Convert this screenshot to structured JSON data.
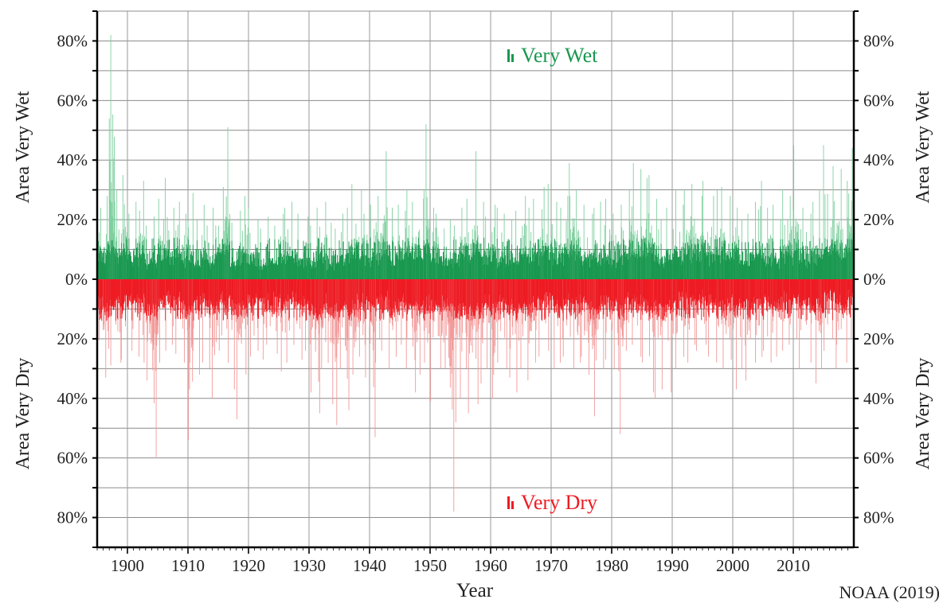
{
  "chart_data": {
    "type": "bar",
    "xlabel": "Year",
    "source_note": "NOAA (2019)",
    "xlim": [
      1895,
      2019
    ],
    "x_ticks": [
      "1900",
      "1910",
      "1920",
      "1930",
      "1940",
      "1950",
      "1960",
      "1970",
      "1980",
      "1990",
      "2000",
      "2010"
    ],
    "y_ticks_upper": [
      "80%",
      "60%",
      "40%",
      "20%",
      "0%"
    ],
    "y_ticks_lower": [
      "20%",
      "40%",
      "60%",
      "80%"
    ],
    "y_label_upper": "Area Very Wet",
    "y_label_lower": "Area Very Dry",
    "ylim": [
      -90,
      90
    ],
    "grid": true,
    "legend_placement": "top-center / bottom-center",
    "resolution": "monthly",
    "colors": {
      "wet": "#1a9850",
      "wet_light": "#7fcf9f",
      "dry": "#ee1c24",
      "dry_light": "#f29a9a"
    },
    "series": [
      {
        "name": "Very Wet",
        "color": "#1a9850",
        "yearly_max_percent": [
          [
            1895,
            24
          ],
          [
            1896,
            28
          ],
          [
            1897,
            82
          ],
          [
            1898,
            30
          ],
          [
            1899,
            35
          ],
          [
            1900,
            22
          ],
          [
            1901,
            26
          ],
          [
            1902,
            33
          ],
          [
            1903,
            18
          ],
          [
            1904,
            21
          ],
          [
            1905,
            27
          ],
          [
            1906,
            34
          ],
          [
            1907,
            24
          ],
          [
            1908,
            26
          ],
          [
            1909,
            22
          ],
          [
            1910,
            29
          ],
          [
            1911,
            20
          ],
          [
            1912,
            25
          ],
          [
            1913,
            18
          ],
          [
            1914,
            24
          ],
          [
            1915,
            31
          ],
          [
            1916,
            51
          ],
          [
            1917,
            19
          ],
          [
            1918,
            23
          ],
          [
            1919,
            28
          ],
          [
            1920,
            24
          ],
          [
            1921,
            20
          ],
          [
            1922,
            17
          ],
          [
            1923,
            21
          ],
          [
            1924,
            18
          ],
          [
            1925,
            22
          ],
          [
            1926,
            24
          ],
          [
            1927,
            26
          ],
          [
            1928,
            22
          ],
          [
            1929,
            21
          ],
          [
            1930,
            18
          ],
          [
            1931,
            24
          ],
          [
            1932,
            26
          ],
          [
            1933,
            19
          ],
          [
            1934,
            17
          ],
          [
            1935,
            22
          ],
          [
            1936,
            24
          ],
          [
            1937,
            32
          ],
          [
            1938,
            30
          ],
          [
            1939,
            22
          ],
          [
            1940,
            25
          ],
          [
            1941,
            28
          ],
          [
            1942,
            43
          ],
          [
            1943,
            24
          ],
          [
            1944,
            25
          ],
          [
            1945,
            23
          ],
          [
            1946,
            30
          ],
          [
            1947,
            26
          ],
          [
            1948,
            27
          ],
          [
            1949,
            52
          ],
          [
            1950,
            24
          ],
          [
            1951,
            22
          ],
          [
            1952,
            17
          ],
          [
            1953,
            20
          ],
          [
            1954,
            18
          ],
          [
            1955,
            24
          ],
          [
            1956,
            27
          ],
          [
            1957,
            43
          ],
          [
            1958,
            26
          ],
          [
            1959,
            21
          ],
          [
            1960,
            25
          ],
          [
            1961,
            24
          ],
          [
            1962,
            22
          ],
          [
            1963,
            20
          ],
          [
            1964,
            23
          ],
          [
            1965,
            28
          ],
          [
            1966,
            24
          ],
          [
            1967,
            27
          ],
          [
            1968,
            31
          ],
          [
            1969,
            32
          ],
          [
            1970,
            26
          ],
          [
            1971,
            24
          ],
          [
            1972,
            28
          ],
          [
            1973,
            39
          ],
          [
            1974,
            30
          ],
          [
            1975,
            25
          ],
          [
            1976,
            22
          ],
          [
            1977,
            24
          ],
          [
            1978,
            26
          ],
          [
            1979,
            27
          ],
          [
            1980,
            22
          ],
          [
            1981,
            25
          ],
          [
            1982,
            30
          ],
          [
            1983,
            39
          ],
          [
            1984,
            37
          ],
          [
            1985,
            34
          ],
          [
            1986,
            35
          ],
          [
            1987,
            27
          ],
          [
            1988,
            20
          ],
          [
            1989,
            24
          ],
          [
            1990,
            30
          ],
          [
            1991,
            25
          ],
          [
            1992,
            30
          ],
          [
            1993,
            32
          ],
          [
            1994,
            28
          ],
          [
            1995,
            33
          ],
          [
            1996,
            28
          ],
          [
            1997,
            30
          ],
          [
            1998,
            31
          ],
          [
            1999,
            28
          ],
          [
            2000,
            24
          ],
          [
            2001,
            20
          ],
          [
            2002,
            22
          ],
          [
            2003,
            26
          ],
          [
            2004,
            33
          ],
          [
            2005,
            24
          ],
          [
            2006,
            25
          ],
          [
            2007,
            20
          ],
          [
            2008,
            30
          ],
          [
            2009,
            28
          ],
          [
            2010,
            45
          ],
          [
            2011,
            24
          ],
          [
            2012,
            22
          ],
          [
            2013,
            26
          ],
          [
            2014,
            30
          ],
          [
            2015,
            45
          ],
          [
            2016,
            38
          ],
          [
            2017,
            37
          ],
          [
            2018,
            33
          ],
          [
            2019,
            44
          ]
        ]
      },
      {
        "name": "Very Dry",
        "color": "#ee1c24",
        "yearly_max_percent": [
          [
            1895,
            31
          ],
          [
            1896,
            33
          ],
          [
            1897,
            29
          ],
          [
            1898,
            28
          ],
          [
            1899,
            27
          ],
          [
            1900,
            24
          ],
          [
            1901,
            26
          ],
          [
            1902,
            28
          ],
          [
            1903,
            34
          ],
          [
            1904,
            60
          ],
          [
            1905,
            28
          ],
          [
            1906,
            24
          ],
          [
            1907,
            22
          ],
          [
            1908,
            25
          ],
          [
            1909,
            28
          ],
          [
            1910,
            54
          ],
          [
            1911,
            32
          ],
          [
            1912,
            28
          ],
          [
            1913,
            30
          ],
          [
            1914,
            40
          ],
          [
            1915,
            24
          ],
          [
            1916,
            28
          ],
          [
            1917,
            37
          ],
          [
            1918,
            47
          ],
          [
            1919,
            32
          ],
          [
            1920,
            26
          ],
          [
            1921,
            24
          ],
          [
            1922,
            27
          ],
          [
            1923,
            22
          ],
          [
            1924,
            25
          ],
          [
            1925,
            31
          ],
          [
            1926,
            28
          ],
          [
            1927,
            22
          ],
          [
            1928,
            27
          ],
          [
            1929,
            24
          ],
          [
            1930,
            38
          ],
          [
            1931,
            45
          ],
          [
            1932,
            30
          ],
          [
            1933,
            42
          ],
          [
            1934,
            49
          ],
          [
            1935,
            30
          ],
          [
            1936,
            44
          ],
          [
            1937,
            32
          ],
          [
            1938,
            26
          ],
          [
            1939,
            33
          ],
          [
            1940,
            53
          ],
          [
            1941,
            28
          ],
          [
            1942,
            24
          ],
          [
            1943,
            30
          ],
          [
            1944,
            26
          ],
          [
            1945,
            22
          ],
          [
            1946,
            30
          ],
          [
            1947,
            38
          ],
          [
            1948,
            32
          ],
          [
            1949,
            28
          ],
          [
            1950,
            41
          ],
          [
            1951,
            30
          ],
          [
            1952,
            30
          ],
          [
            1953,
            78
          ],
          [
            1954,
            48
          ],
          [
            1955,
            40
          ],
          [
            1956,
            45
          ],
          [
            1957,
            42
          ],
          [
            1958,
            35
          ],
          [
            1959,
            30
          ],
          [
            1960,
            40
          ],
          [
            1961,
            28
          ],
          [
            1962,
            30
          ],
          [
            1963,
            33
          ],
          [
            1964,
            38
          ],
          [
            1965,
            30
          ],
          [
            1966,
            34
          ],
          [
            1967,
            28
          ],
          [
            1968,
            26
          ],
          [
            1969,
            24
          ],
          [
            1970,
            30
          ],
          [
            1971,
            28
          ],
          [
            1972,
            26
          ],
          [
            1973,
            30
          ],
          [
            1974,
            28
          ],
          [
            1975,
            26
          ],
          [
            1976,
            32
          ],
          [
            1977,
            46
          ],
          [
            1978,
            30
          ],
          [
            1979,
            27
          ],
          [
            1980,
            30
          ],
          [
            1981,
            52
          ],
          [
            1982,
            24
          ],
          [
            1983,
            22
          ],
          [
            1984,
            26
          ],
          [
            1985,
            28
          ],
          [
            1986,
            38
          ],
          [
            1987,
            40
          ],
          [
            1988,
            37
          ],
          [
            1989,
            38
          ],
          [
            1990,
            30
          ],
          [
            1991,
            26
          ],
          [
            1992,
            28
          ],
          [
            1993,
            22
          ],
          [
            1994,
            24
          ],
          [
            1995,
            22
          ],
          [
            1996,
            26
          ],
          [
            1997,
            28
          ],
          [
            1998,
            30
          ],
          [
            1999,
            27
          ],
          [
            2000,
            37
          ],
          [
            2001,
            30
          ],
          [
            2002,
            34
          ],
          [
            2003,
            28
          ],
          [
            2004,
            26
          ],
          [
            2005,
            24
          ],
          [
            2006,
            28
          ],
          [
            2007,
            26
          ],
          [
            2008,
            24
          ],
          [
            2009,
            22
          ],
          [
            2010,
            20
          ],
          [
            2011,
            30
          ],
          [
            2012,
            28
          ],
          [
            2013,
            35
          ],
          [
            2014,
            30
          ],
          [
            2015,
            24
          ],
          [
            2016,
            20
          ],
          [
            2017,
            30
          ],
          [
            2018,
            28
          ],
          [
            2019,
            20
          ]
        ]
      }
    ]
  }
}
